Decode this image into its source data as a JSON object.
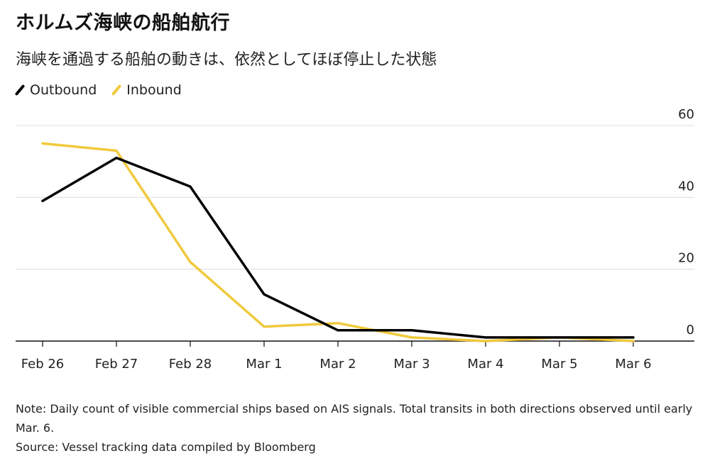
{
  "header": {
    "title": "ホルムズ海峡の船舶航行",
    "subtitle": "海峡を通過する船舶の動きは、依然としてほぼ停止した状態"
  },
  "legend": [
    {
      "label": "Outbound",
      "color": "#000000"
    },
    {
      "label": "Inbound",
      "color": "#f0c93c"
    }
  ],
  "footer": {
    "note": "Note: Daily count of visible commercial ships based on AIS signals. Total transits in both directions observed until early Mar. 6.",
    "source": "Source: Vessel tracking data compiled by Bloomberg"
  },
  "chart_data": {
    "type": "line",
    "title": "ホルムズ海峡の船舶航行",
    "subtitle": "海峡を通過する船舶の動きは、依然としてほぼ停止した状態",
    "xlabel": "",
    "ylabel": "",
    "categories": [
      "Feb 26",
      "Feb 27",
      "Feb 28",
      "Mar 1",
      "Mar 2",
      "Mar 3",
      "Mar 4",
      "Mar 5",
      "Mar 6"
    ],
    "series": [
      {
        "name": "Outbound",
        "color": "#000000",
        "values": [
          39,
          51,
          43,
          13,
          3,
          3,
          1,
          1,
          1
        ]
      },
      {
        "name": "Inbound",
        "color": "#f0c93c",
        "values": [
          55,
          53,
          22,
          4,
          5,
          1,
          0,
          1,
          0
        ]
      }
    ],
    "ylim": [
      0,
      60
    ],
    "yticks": [
      0,
      20,
      40,
      60
    ],
    "y_axis_position": "right",
    "grid": true,
    "legend_position": "top-left"
  }
}
